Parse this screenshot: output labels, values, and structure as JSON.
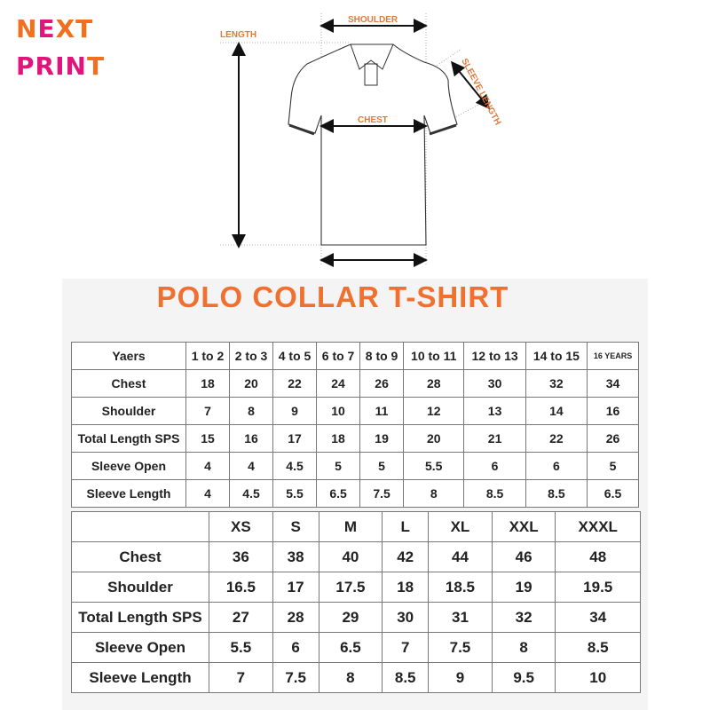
{
  "logo": {
    "line1": "NEXT",
    "line2": "PRINT",
    "colors": {
      "orange": "#f07020",
      "magenta": "#e0147a"
    }
  },
  "diagram": {
    "labels": {
      "shoulder": "SHOULDER",
      "length": "LENGTH",
      "chest": "CHEST",
      "sleeve_length": "SLEEVE LENGTH"
    }
  },
  "title": "POLO COLLAR T-SHIRT",
  "kids_table": {
    "header": [
      "Yaers",
      "1 to 2",
      "2 to 3",
      "4 to 5",
      "6 to 7",
      "8 to 9",
      "10 to 11",
      "12 to 13",
      "14 to 15",
      "16 YEARS"
    ],
    "rows": [
      [
        "Chest",
        "18",
        "20",
        "22",
        "24",
        "26",
        "28",
        "30",
        "32",
        "34"
      ],
      [
        "Shoulder",
        "7",
        "8",
        "9",
        "10",
        "11",
        "12",
        "13",
        "14",
        "16"
      ],
      [
        "Total Length SPS",
        "15",
        "16",
        "17",
        "18",
        "19",
        "20",
        "21",
        "22",
        "26"
      ],
      [
        "Sleeve Open",
        "4",
        "4",
        "4.5",
        "5",
        "5",
        "5.5",
        "6",
        "6",
        "5"
      ],
      [
        "Sleeve Length",
        "4",
        "4.5",
        "5.5",
        "6.5",
        "7.5",
        "8",
        "8.5",
        "8.5",
        "6.5"
      ]
    ]
  },
  "adult_table": {
    "header": [
      "",
      "XS",
      "S",
      "M",
      "L",
      "XL",
      "XXL",
      "XXXL"
    ],
    "rows": [
      [
        "Chest",
        "36",
        "38",
        "40",
        "42",
        "44",
        "46",
        "48"
      ],
      [
        "Shoulder",
        "16.5",
        "17",
        "17.5",
        "18",
        "18.5",
        "19",
        "19.5"
      ],
      [
        "Total Length SPS",
        "27",
        "28",
        "29",
        "30",
        "31",
        "32",
        "34"
      ],
      [
        "Sleeve Open",
        "5.5",
        "6",
        "6.5",
        "7",
        "7.5",
        "8",
        "8.5"
      ],
      [
        "Sleeve Length",
        "7",
        "7.5",
        "8",
        "8.5",
        "9",
        "9.5",
        "10"
      ]
    ]
  }
}
